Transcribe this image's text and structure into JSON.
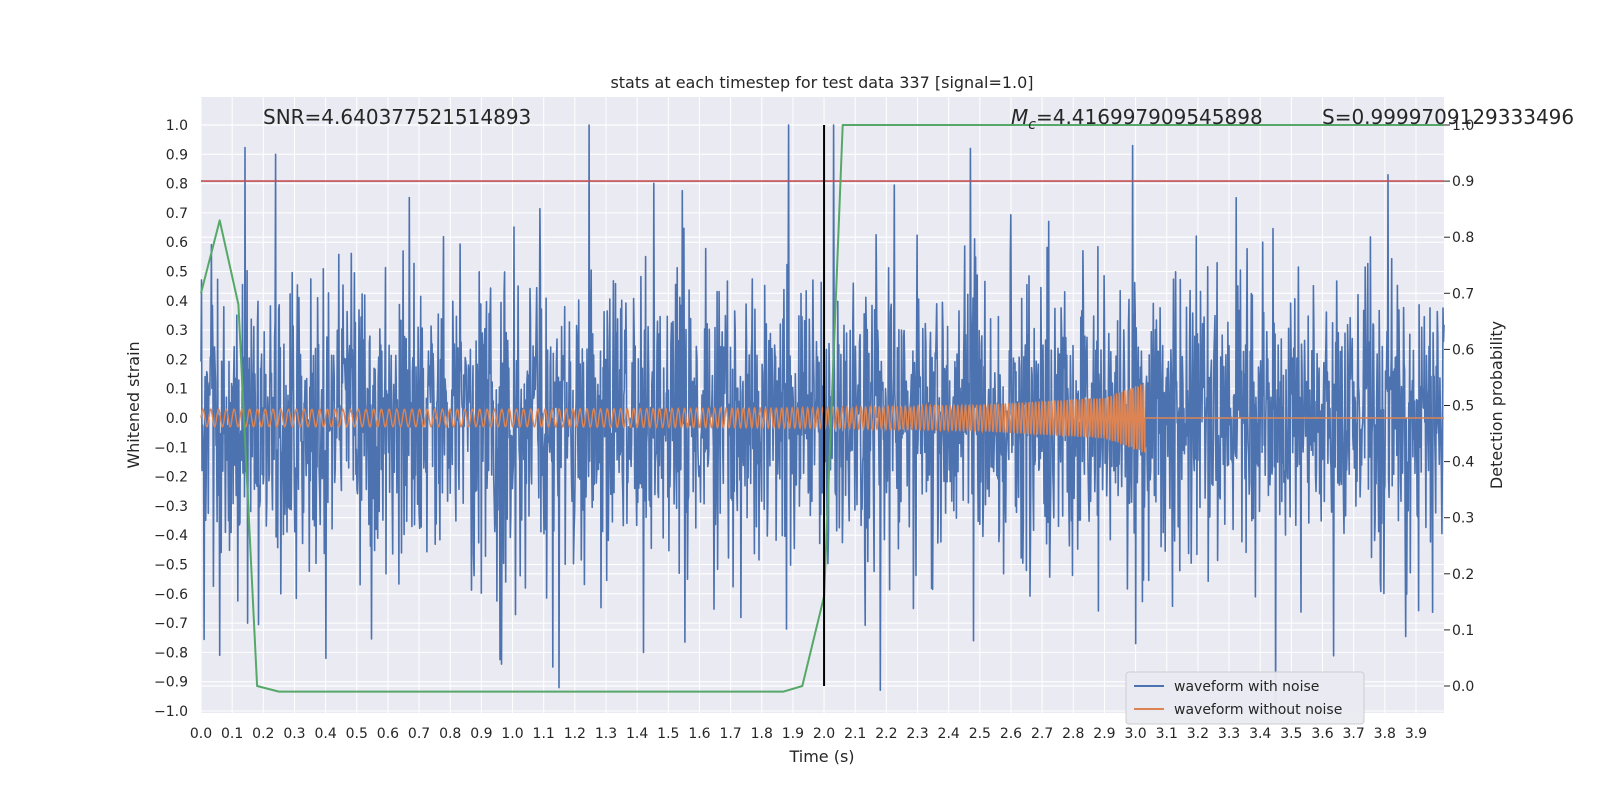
{
  "chart_data": {
    "type": "line",
    "title": "stats at each timestep for test data 337 [signal=1.0]",
    "xlabel": "Time (s)",
    "ylabel_left": "Whitened strain",
    "ylabel_right": "Detection probability",
    "xlim": [
      0,
      3.99
    ],
    "ylim_left": [
      -1.0,
      1.0
    ],
    "ylim_right": [
      -0.045,
      1.0
    ],
    "xticks": [
      "0.0",
      "0.1",
      "0.2",
      "0.3",
      "0.4",
      "0.5",
      "0.6",
      "0.7",
      "0.8",
      "0.9",
      "1.0",
      "1.1",
      "1.2",
      "1.3",
      "1.4",
      "1.5",
      "1.6",
      "1.7",
      "1.8",
      "1.9",
      "2.0",
      "2.1",
      "2.2",
      "2.3",
      "2.4",
      "2.5",
      "2.6",
      "2.7",
      "2.8",
      "2.9",
      "3.0",
      "3.1",
      "3.2",
      "3.3",
      "3.4",
      "3.5",
      "3.6",
      "3.7",
      "3.8",
      "3.9"
    ],
    "yticks_left": [
      "1.0",
      "0.9",
      "0.8",
      "0.7",
      "0.6",
      "0.5",
      "0.4",
      "0.3",
      "0.2",
      "0.1",
      "0.0",
      "−0.1",
      "−0.2",
      "−0.3",
      "−0.4",
      "−0.5",
      "−0.6",
      "−0.7",
      "−0.8",
      "−0.9",
      "−1.0"
    ],
    "yticks_right": [
      "1.0",
      "0.9",
      "0.8",
      "0.7",
      "0.6",
      "0.5",
      "0.4",
      "0.3",
      "0.2",
      "0.1",
      "0.0"
    ],
    "annotations": {
      "snr": "SNR=4.640377521514893",
      "mc_symbol": "M",
      "mc_sub": "c",
      "mc_value": "=4.416997909545898",
      "s_text": "S=0.9999709129333496"
    },
    "threshold_right": 0.9,
    "event_time": 2.0,
    "series": [
      {
        "name": "waveform with noise",
        "color": "#4c72b0",
        "axis": "left",
        "noise_amplitude": 0.3,
        "max": 1.0,
        "min": -0.92
      },
      {
        "name": "waveform without noise",
        "color": "#dd8452",
        "axis": "left",
        "envelope": [
          [
            0.0,
            0.03
          ],
          [
            1.0,
            0.03
          ],
          [
            2.0,
            0.035
          ],
          [
            2.5,
            0.045
          ],
          [
            2.9,
            0.07
          ],
          [
            3.03,
            0.12
          ]
        ],
        "end": 3.03
      },
      {
        "name": "Detection probability",
        "color": "#55a868",
        "axis": "right",
        "x": [
          0.0,
          0.06,
          0.12,
          0.18,
          0.25,
          1.5,
          1.87,
          1.93,
          2.0,
          2.06,
          2.12,
          3.99
        ],
        "y": [
          0.7,
          0.83,
          0.68,
          0.0,
          -0.01,
          -0.01,
          -0.01,
          0.0,
          0.16,
          1.0,
          1.0,
          1.0
        ]
      }
    ],
    "legend": {
      "position": "bottom-right",
      "entries": [
        "waveform with noise",
        "waveform without noise"
      ]
    },
    "colors": {
      "background": "#eaeaf2",
      "grid": "#ffffff",
      "threshold": "#c44e52",
      "event_line": "#000000"
    }
  }
}
